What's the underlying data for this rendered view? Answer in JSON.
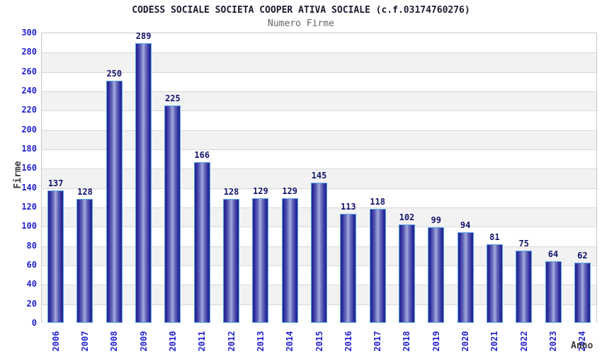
{
  "title": "CODESS SOCIALE SOCIETA COOPER ATIVA SOCIALE (c.f.03174760276)",
  "subtitle": "Numero Firme",
  "chart_data": {
    "type": "bar",
    "title": "CODESS SOCIALE SOCIETA COOPER ATIVA SOCIALE (c.f.03174760276)",
    "subtitle": "Numero Firme",
    "xlabel": "Anno",
    "ylabel": "Firme",
    "categories": [
      "2006",
      "2007",
      "2008",
      "2009",
      "2010",
      "2011",
      "2012",
      "2013",
      "2014",
      "2015",
      "2016",
      "2017",
      "2018",
      "2019",
      "2020",
      "2021",
      "2022",
      "2023",
      "2024"
    ],
    "values": [
      137,
      128,
      250,
      289,
      225,
      166,
      128,
      129,
      129,
      145,
      113,
      118,
      102,
      99,
      94,
      81,
      75,
      64,
      62
    ],
    "ylim": [
      0,
      300
    ],
    "ytick_step": 20,
    "grid": true,
    "legend": false,
    "band_colors": [
      "#ffffff",
      "#f2f2f2"
    ],
    "colors": {
      "bar_edge": "#23238c",
      "bar_center": "#a7abdd",
      "bar_border": "#5ca7e8",
      "value_label": "#14146b",
      "axis_tick": "#2323cd",
      "axis_title": "#3a3a3a",
      "gridline": "#d8d8d8",
      "title": "#1a1a30",
      "subtitle": "#666666"
    }
  }
}
